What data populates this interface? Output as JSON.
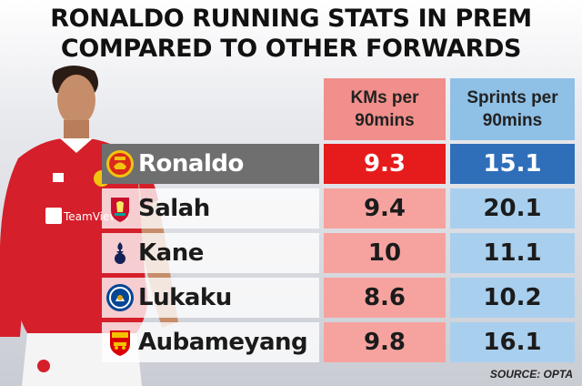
{
  "title_line1": "RONALDO RUNNING STATS IN PREM",
  "title_line2": "COMPARED TO OTHER FORWARDS",
  "source": "SOURCE: OPTA",
  "colors": {
    "km_header": "#f08f8b",
    "sprint_header": "#8fc0e6",
    "km_cell": "#f6a3a0",
    "sprint_cell": "#a9cfee",
    "highlight_km": "#e61b1b",
    "highlight_sprint": "#2f6fba",
    "highlight_name": "#6f6f6f"
  },
  "jersey_text": "TeamViewer",
  "chart_data": {
    "type": "table",
    "columns": [
      "KMs per 90mins",
      "Sprints per 90mins"
    ],
    "column_header_lines": [
      [
        "KMs per",
        "90mins"
      ],
      [
        "Sprints per",
        "90mins"
      ]
    ],
    "rows": [
      {
        "player": "Ronaldo",
        "club_badge": "manchester-united-badge",
        "kms_per_90": "9.3",
        "sprints_per_90": "15.1",
        "highlight": true
      },
      {
        "player": "Salah",
        "club_badge": "liverpool-badge",
        "kms_per_90": "9.4",
        "sprints_per_90": "20.1",
        "highlight": false
      },
      {
        "player": "Kane",
        "club_badge": "tottenham-badge",
        "kms_per_90": "10",
        "sprints_per_90": "11.1",
        "highlight": false
      },
      {
        "player": "Lukaku",
        "club_badge": "chelsea-badge",
        "kms_per_90": "8.6",
        "sprints_per_90": "10.2",
        "highlight": false
      },
      {
        "player": "Aubameyang",
        "club_badge": "arsenal-badge",
        "kms_per_90": "9.8",
        "sprints_per_90": "16.1",
        "highlight": false
      }
    ]
  }
}
